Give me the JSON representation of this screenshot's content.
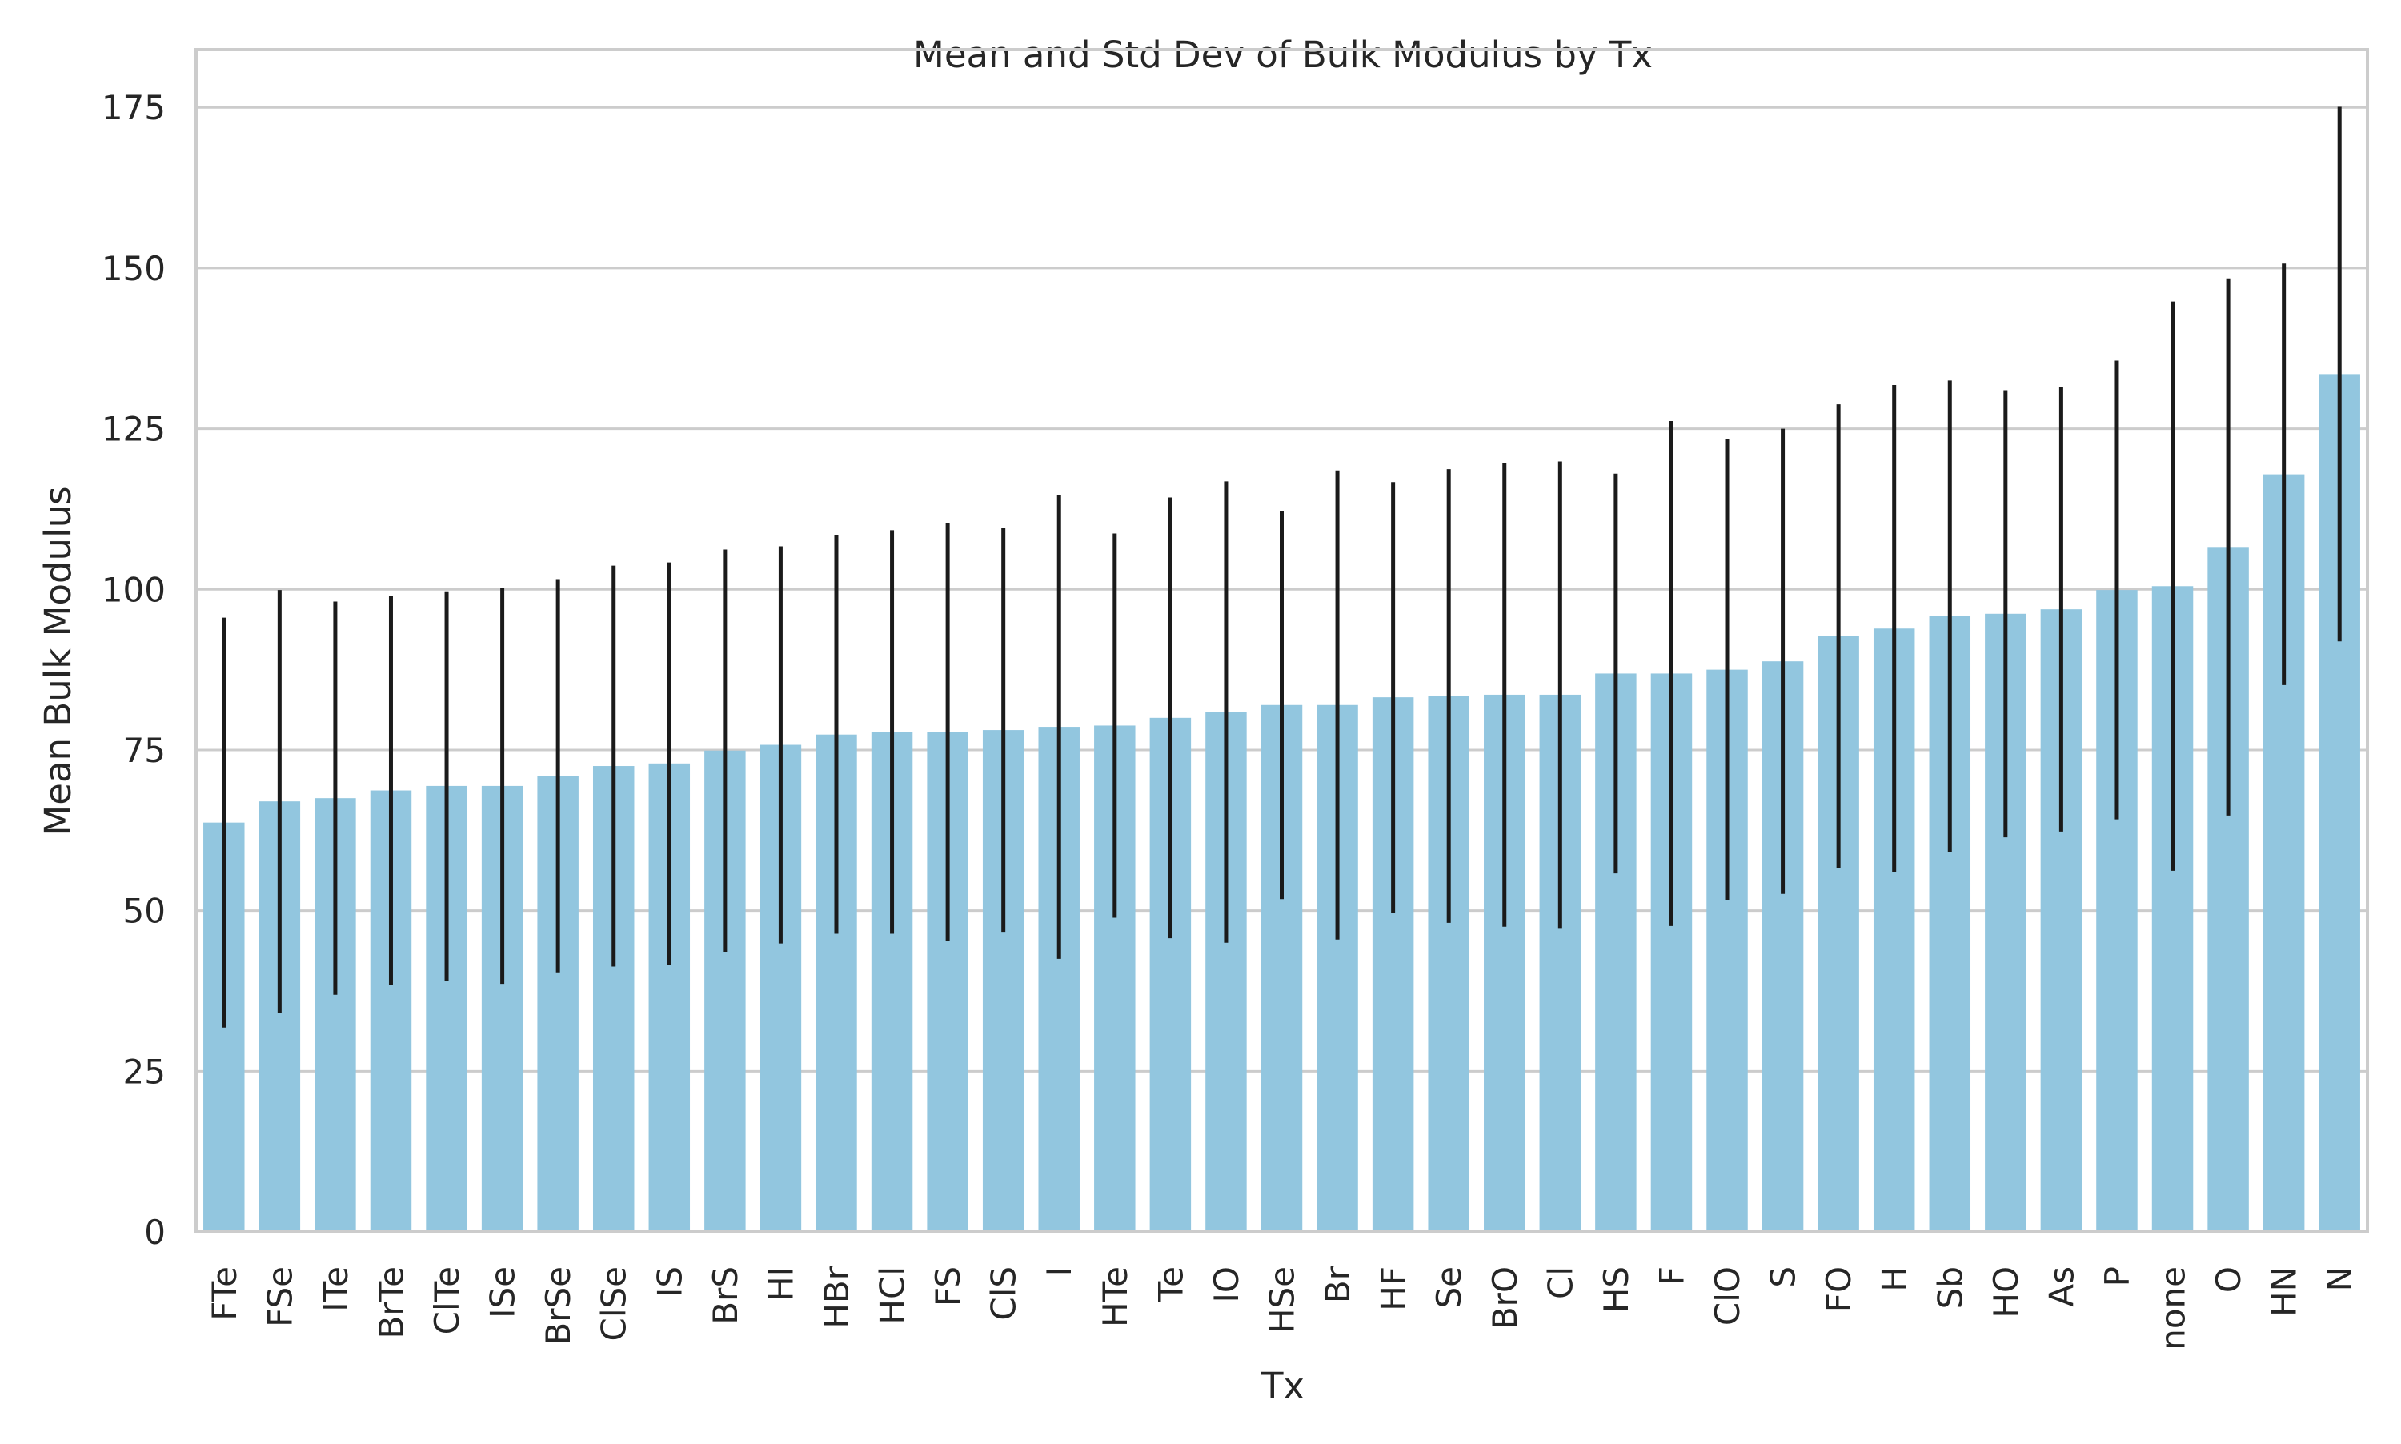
{
  "chart_data": {
    "type": "bar",
    "title": "Mean and Std Dev of Bulk Modulus by Tx",
    "xlabel": "Tx",
    "ylabel": "Mean Bulk Modulus",
    "ylim": [
      0,
      184
    ],
    "yticks": [
      0,
      25,
      50,
      75,
      100,
      125,
      150,
      175
    ],
    "grid": "horizontal",
    "bar_color": "#92c6df",
    "error_color": "#1a1a1a",
    "categories": [
      "FTe",
      "FSe",
      "ITe",
      "BrTe",
      "ClTe",
      "ISe",
      "BrSe",
      "ClSe",
      "IS",
      "BrS",
      "HI",
      "HBr",
      "HCl",
      "FS",
      "ClS",
      "I",
      "HTe",
      "Te",
      "IO",
      "HSe",
      "Br",
      "HF",
      "Se",
      "BrO",
      "Cl",
      "HS",
      "F",
      "ClO",
      "S",
      "FO",
      "H",
      "Sb",
      "HO",
      "As",
      "P",
      "none",
      "O",
      "HN",
      "N"
    ],
    "values": [
      63.7,
      67.0,
      67.5,
      68.7,
      69.4,
      69.4,
      71.0,
      72.5,
      72.9,
      74.9,
      75.8,
      77.4,
      77.8,
      77.8,
      78.1,
      78.6,
      78.8,
      80.0,
      80.9,
      82.0,
      82.0,
      83.2,
      83.4,
      83.6,
      83.6,
      86.9,
      86.9,
      87.5,
      88.8,
      92.7,
      93.9,
      95.8,
      96.2,
      96.9,
      99.9,
      100.5,
      106.6,
      117.9,
      133.5
    ],
    "std": [
      31.9,
      32.9,
      30.6,
      30.3,
      30.3,
      30.8,
      30.6,
      31.2,
      31.3,
      31.3,
      30.9,
      31.0,
      31.4,
      32.5,
      31.4,
      36.1,
      29.9,
      34.3,
      35.9,
      30.2,
      36.5,
      33.5,
      35.3,
      36.1,
      36.3,
      31.1,
      39.3,
      35.9,
      36.2,
      36.1,
      37.9,
      36.7,
      34.8,
      34.6,
      35.7,
      44.3,
      41.8,
      32.8,
      41.6
    ]
  }
}
